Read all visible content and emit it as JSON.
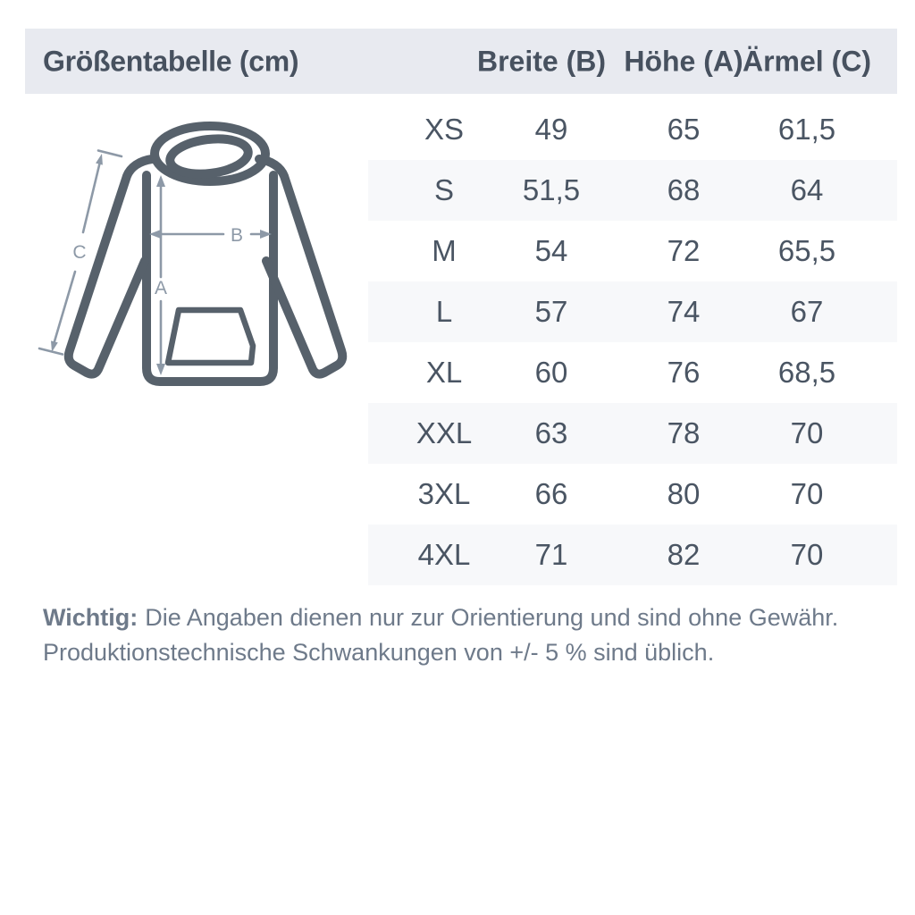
{
  "header": {
    "title": "Größentabelle (cm)",
    "columns": [
      "Breite (B)",
      "Höhe (A)",
      "Ärmel (C)"
    ]
  },
  "diagram": {
    "label_a": "A",
    "label_b": "B",
    "label_c": "C"
  },
  "table": {
    "rows": [
      {
        "size": "XS",
        "breite": "49",
        "hoehe": "65",
        "aermel": "61,5"
      },
      {
        "size": "S",
        "breite": "51,5",
        "hoehe": "68",
        "aermel": "64"
      },
      {
        "size": "M",
        "breite": "54",
        "hoehe": "72",
        "aermel": "65,5"
      },
      {
        "size": "L",
        "breite": "57",
        "hoehe": "74",
        "aermel": "67"
      },
      {
        "size": "XL",
        "breite": "60",
        "hoehe": "76",
        "aermel": "68,5"
      },
      {
        "size": "XXL",
        "breite": "63",
        "hoehe": "78",
        "aermel": "70"
      },
      {
        "size": "3XL",
        "breite": "66",
        "hoehe": "80",
        "aermel": "70"
      },
      {
        "size": "4XL",
        "breite": "71",
        "hoehe": "82",
        "aermel": "70"
      }
    ]
  },
  "footer": {
    "bold_label": "Wichtig:",
    "line1": "Die Angaben dienen nur zur Orientierung und sind ohne Gewähr.",
    "line2": "Produktionstechnische Schwankungen von +/- 5 % sind üblich."
  },
  "colors": {
    "heading_text": "#47515f",
    "value_text": "#4a5563",
    "header_band": "#e8eaf0",
    "stripe_row": "#f7f8fa",
    "hoodie_outline": "#57616b",
    "dimension_arrow": "#8d99a7",
    "footer_text": "#6e7a8a"
  }
}
